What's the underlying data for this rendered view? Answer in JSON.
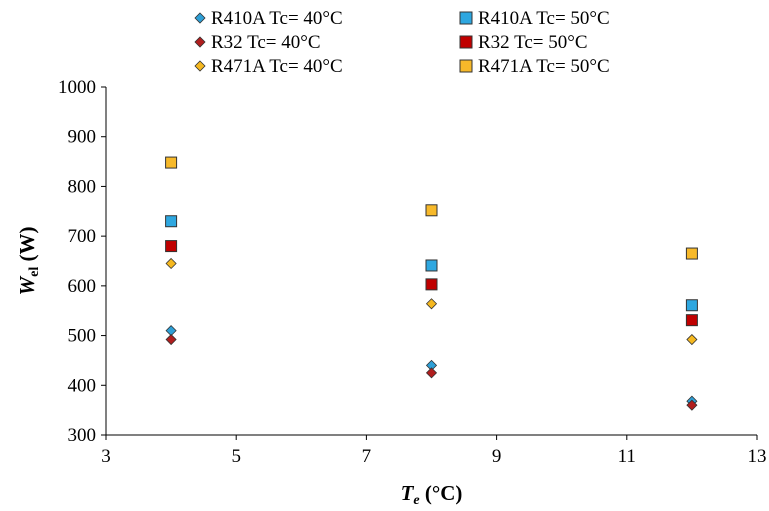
{
  "chart_data": {
    "type": "scatter",
    "xlabel": {
      "main": "T",
      "sub": "e",
      "rest": " (°C)"
    },
    "ylabel": {
      "main": "W",
      "sub": "el",
      "rest": " (W)"
    },
    "xlim": [
      3,
      13
    ],
    "ylim": [
      300,
      1000
    ],
    "xticks": [
      3,
      5,
      7,
      9,
      11,
      13
    ],
    "yticks": [
      300,
      400,
      500,
      600,
      700,
      800,
      900,
      1000
    ],
    "legend_position": "top",
    "series": [
      {
        "name": "R410A Tc=  40°C",
        "marker": "diamond",
        "color": "#2e9fd6",
        "x": [
          4,
          8,
          12
        ],
        "y": [
          510,
          440,
          368
        ]
      },
      {
        "name": "R410A Tc=  50°C",
        "marker": "square",
        "color": "#2ea7e0",
        "x": [
          4,
          8,
          12
        ],
        "y": [
          730,
          641,
          561
        ]
      },
      {
        "name": "R32 Tc=  40°C",
        "marker": "diamond",
        "color": "#b01e1e",
        "x": [
          4,
          8,
          12
        ],
        "y": [
          492,
          425,
          360
        ]
      },
      {
        "name": "R32 Tc=  50°C",
        "marker": "square",
        "color": "#c00000",
        "x": [
          4,
          8,
          12
        ],
        "y": [
          680,
          603,
          531
        ]
      },
      {
        "name": "R471A Tc=  40°C",
        "marker": "diamond",
        "color": "#f5b820",
        "x": [
          4,
          8,
          12
        ],
        "y": [
          645,
          564,
          492
        ]
      },
      {
        "name": "R471A Tc=  50°C",
        "marker": "square",
        "color": "#f7b92a",
        "x": [
          4,
          8,
          12
        ],
        "y": [
          848,
          752,
          665
        ]
      }
    ]
  }
}
